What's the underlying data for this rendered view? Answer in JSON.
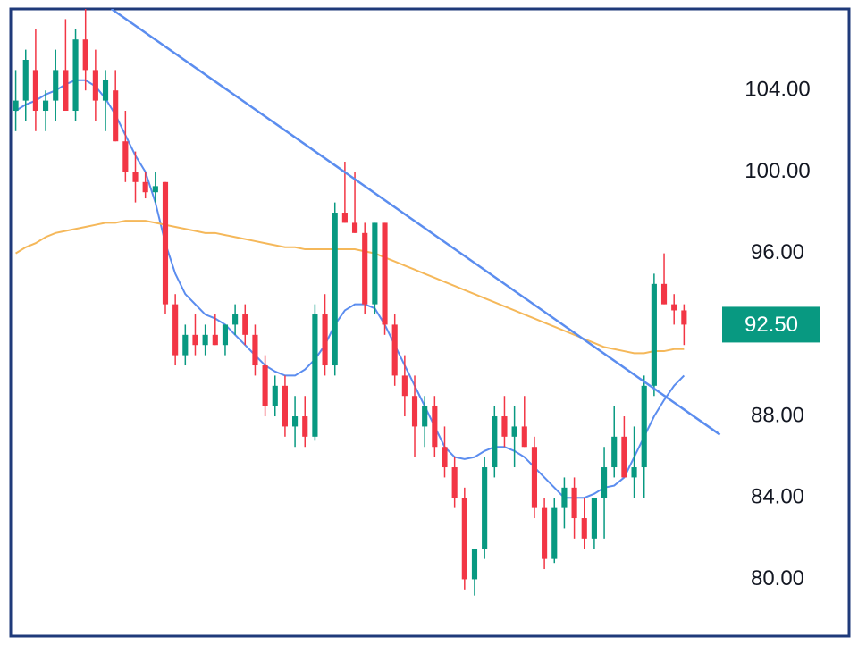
{
  "chart_data": {
    "type": "candlestick",
    "categories": [
      null,
      null,
      null,
      null,
      null,
      null,
      null,
      null,
      null,
      null,
      null,
      null,
      null,
      null,
      null,
      null,
      null,
      null,
      null,
      null,
      null,
      null,
      null,
      null,
      null,
      null,
      null,
      null,
      null,
      null,
      null,
      null,
      null,
      null,
      null,
      null,
      null,
      null,
      null,
      null,
      null,
      null,
      null,
      null,
      null,
      null,
      null,
      null,
      null,
      null,
      null,
      null,
      null,
      null,
      null,
      null,
      null,
      null,
      null,
      null,
      null,
      null,
      null,
      null,
      null,
      null,
      null,
      null
    ],
    "open": [
      103,
      103.5,
      105,
      103,
      103.5,
      105,
      103,
      106.5,
      105,
      103.5,
      104,
      101.5,
      100,
      99.5,
      99,
      99.5,
      93.5,
      91,
      92,
      91.5,
      92,
      91.5,
      92.5,
      93,
      92,
      90.5,
      88.5,
      89.5,
      87.5,
      88,
      87,
      93,
      90.5,
      98,
      97.5,
      97,
      93.5,
      97.5,
      92.5,
      90,
      89,
      87.5,
      88.5,
      86.5,
      85.5,
      84,
      80,
      81.5,
      85.5,
      88,
      87,
      87.5,
      86.5,
      83.5,
      81,
      83.5,
      84.5,
      83,
      82,
      84,
      85.5,
      87,
      85,
      85.5,
      89.5,
      94.5,
      93.5,
      93.2
    ],
    "high": [
      105,
      106,
      107,
      104,
      106,
      107.5,
      107,
      108.5,
      106,
      105,
      105,
      103,
      101,
      100,
      100,
      99.5,
      94,
      92.5,
      93,
      92.5,
      93,
      92.5,
      93.5,
      93.5,
      92.5,
      91,
      90,
      90,
      89,
      89,
      93.5,
      94,
      98.5,
      100.5,
      100,
      97.5,
      97.5,
      97.5,
      93,
      91,
      90,
      89,
      89,
      87.5,
      86,
      84.5,
      81.5,
      86,
      88.5,
      89,
      88.5,
      89,
      87,
      84,
      84,
      85,
      85,
      84,
      84,
      86.5,
      88.5,
      88,
      87.5,
      90,
      95,
      96,
      94,
      93.5
    ],
    "low": [
      102,
      102.5,
      102,
      102,
      102.5,
      103,
      102.5,
      104,
      102.5,
      102,
      101.5,
      99.5,
      98.5,
      98.7,
      98.5,
      93,
      90.5,
      90.5,
      91,
      91,
      91.5,
      91,
      92,
      91.5,
      90,
      88,
      88,
      87,
      86.5,
      86.5,
      86.8,
      90,
      90,
      97.5,
      97,
      93,
      93,
      92,
      89.5,
      88,
      86,
      86.5,
      86,
      85,
      83.5,
      79.5,
      79.2,
      81,
      85,
      86.5,
      85.5,
      86.5,
      83,
      80.5,
      80.8,
      82.5,
      82,
      81.5,
      81.5,
      82,
      85,
      85,
      84,
      84,
      89,
      93.5,
      92.5,
      91.5
    ],
    "close": [
      103.5,
      105.5,
      103,
      103.5,
      105,
      103,
      106.5,
      105,
      103.5,
      104.5,
      101.5,
      100,
      99.5,
      99,
      99.3,
      93.5,
      91,
      92,
      91.5,
      92,
      91.5,
      92.5,
      93,
      92,
      90.5,
      88.5,
      89.5,
      87.5,
      88,
      87,
      93,
      90.5,
      98,
      97.5,
      97,
      93.5,
      97.5,
      92.5,
      90,
      89,
      87.5,
      88.5,
      86.5,
      85.5,
      84,
      80,
      81.5,
      85.5,
      88,
      87,
      87.5,
      86.5,
      83.5,
      81,
      83.5,
      84.5,
      83,
      82,
      84,
      85.5,
      87,
      85,
      85.5,
      89.5,
      94.5,
      93.5,
      93.2,
      92.5
    ],
    "up_color": "#089981",
    "down_color": "#f23645",
    "series": [
      {
        "color": "#5b8def",
        "values": [
          103,
          103.3,
          103.5,
          103.8,
          104,
          104.3,
          104.5,
          104.5,
          104.2,
          103.6,
          102.8,
          101.8,
          100.8,
          100,
          98.5,
          96.5,
          95,
          94,
          93.5,
          93,
          92.8,
          92.5,
          92,
          91.5,
          91,
          90.5,
          90.2,
          90,
          90,
          90.3,
          90.8,
          91.5,
          92.5,
          93.2,
          93.5,
          93.5,
          93.3,
          92.5,
          91.5,
          90.5,
          89.5,
          88.5,
          87.5,
          86.5,
          86,
          85.9,
          86,
          86.3,
          86.5,
          86.5,
          86.3,
          86,
          85.5,
          85,
          84.5,
          84,
          84,
          84,
          84.2,
          84.5,
          84.6,
          85,
          86,
          87,
          88,
          88.8,
          89.5,
          90
        ]
      },
      {
        "color": "#f5b85a",
        "values": [
          96,
          96.3,
          96.5,
          96.8,
          97,
          97.1,
          97.2,
          97.3,
          97.4,
          97.5,
          97.5,
          97.6,
          97.6,
          97.6,
          97.5,
          97.4,
          97.3,
          97.2,
          97.1,
          97,
          97,
          96.9,
          96.8,
          96.7,
          96.6,
          96.5,
          96.4,
          96.3,
          96.3,
          96.2,
          96.2,
          96.2,
          96.2,
          96.2,
          96.2,
          96.1,
          96,
          95.8,
          95.6,
          95.4,
          95.2,
          95,
          94.8,
          94.6,
          94.4,
          94.2,
          94,
          93.8,
          93.6,
          93.4,
          93.2,
          93,
          92.8,
          92.6,
          92.4,
          92.2,
          92,
          91.8,
          91.6,
          91.4,
          91.3,
          91.2,
          91.1,
          91.1,
          91.2,
          91.2,
          91.3,
          91.3
        ]
      }
    ],
    "trendline": {
      "color": "#5b8def",
      "x": [
        9.6,
        70.6
      ],
      "values": [
        108,
        87.1
      ]
    },
    "last_price": {
      "value": 92.5,
      "label": "92.50",
      "color": "#089981"
    },
    "xlim": [
      -0.5,
      71
    ],
    "ylim": [
      77.3,
      108
    ],
    "yticks": [
      {
        "value": 80,
        "label": "80.00"
      },
      {
        "value": 84,
        "label": "84.00"
      },
      {
        "value": 88,
        "label": "88.00"
      },
      {
        "value": 96,
        "label": "96.00"
      },
      {
        "value": 100,
        "label": "100.00"
      },
      {
        "value": 104,
        "label": "104.00"
      }
    ]
  }
}
